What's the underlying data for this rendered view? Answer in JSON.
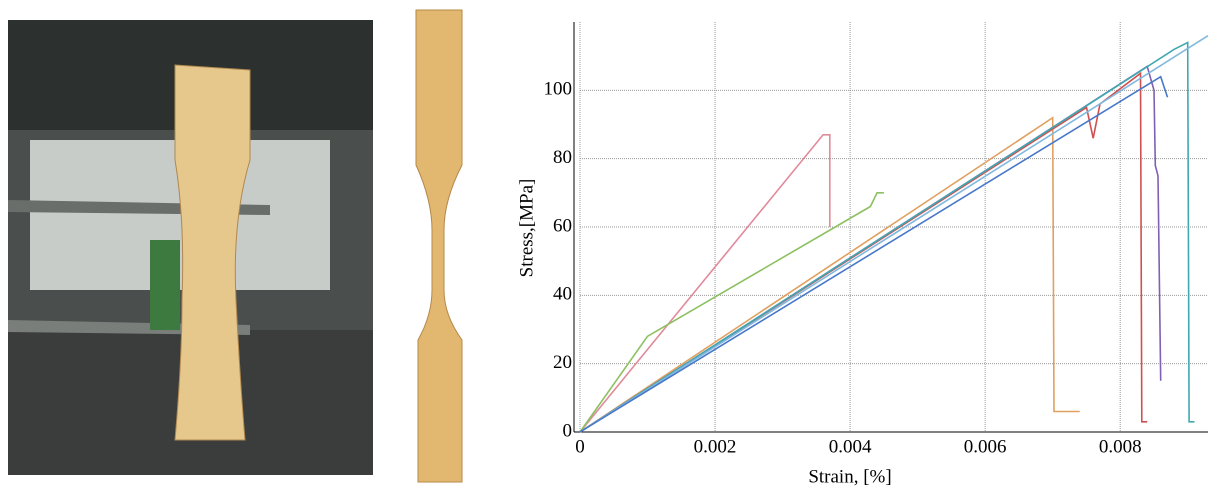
{
  "chart_data": {
    "type": "line",
    "xlabel": "Strain, [%]",
    "ylabel": "Stress,[MPa]",
    "xlim": [
      0,
      0.0093
    ],
    "ylim": [
      0,
      120
    ],
    "xticks": [
      0,
      0.002,
      0.004,
      0.006,
      0.008
    ],
    "yticks": [
      0,
      20,
      40,
      60,
      80,
      100
    ],
    "grid": true,
    "series": [
      {
        "color": "#e08a9a",
        "x": [
          0,
          0.0036,
          0.0037,
          0.0037
        ],
        "values": [
          0,
          87,
          87,
          60
        ]
      },
      {
        "color": "#e0a060",
        "x": [
          0,
          0.007,
          0.00702,
          0.0074
        ],
        "values": [
          0,
          92,
          6,
          6
        ]
      },
      {
        "color": "#8cc060",
        "x": [
          0,
          0.001,
          0.0043,
          0.0044,
          0.0045
        ],
        "values": [
          0,
          28,
          66,
          70,
          70
        ]
      },
      {
        "color": "#d05050",
        "x": [
          0,
          0.0075,
          0.0076,
          0.0077,
          0.0083,
          0.00832,
          0.0084
        ],
        "values": [
          0,
          95,
          86,
          96,
          105,
          3,
          3
        ]
      },
      {
        "color": "#8060b0",
        "x": [
          0,
          0.0084,
          0.0085,
          0.00852,
          0.00856,
          0.0086
        ],
        "values": [
          0,
          107,
          100,
          78,
          75,
          15
        ]
      },
      {
        "color": "#40a8b0",
        "x": [
          0,
          0.0088,
          0.009,
          0.00902,
          0.0091
        ],
        "values": [
          0,
          112,
          114,
          3,
          3
        ]
      },
      {
        "color": "#80b8e0",
        "x": [
          0,
          0.0093
        ],
        "values": [
          0,
          116
        ]
      },
      {
        "color": "#4878c8",
        "x": [
          0,
          0.0086,
          0.0087
        ],
        "values": [
          0,
          104,
          98
        ]
      }
    ]
  }
}
